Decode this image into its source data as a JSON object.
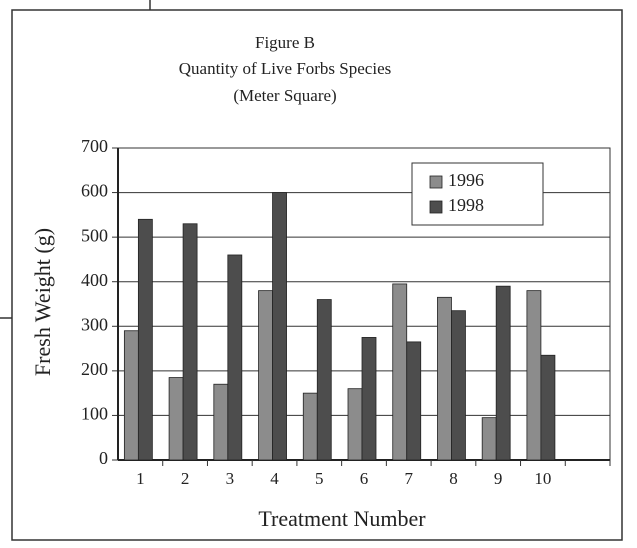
{
  "chart_data": {
    "type": "bar",
    "title": [
      "Figure B",
      "Quantity of Live Forbs Species",
      "(Meter Square)"
    ],
    "x_label": "Treatment Number",
    "y_label": "Fresh Weight (g)",
    "categories": [
      "1",
      "2",
      "3",
      "4",
      "5",
      "6",
      "7",
      "8",
      "9",
      "10",
      null
    ],
    "series": [
      {
        "name": "1996",
        "color": "#8c8c8c",
        "values": [
          290,
          185,
          170,
          380,
          150,
          160,
          395,
          365,
          95,
          380,
          null
        ]
      },
      {
        "name": "1998",
        "color": "#4d4d4d",
        "values": [
          540,
          530,
          460,
          600,
          360,
          275,
          265,
          335,
          390,
          235,
          null
        ]
      }
    ],
    "ylim": [
      0,
      700
    ],
    "yticks": [
      0,
      100,
      200,
      300,
      400,
      500,
      600,
      700
    ],
    "grid": true,
    "legend": "upper right"
  }
}
